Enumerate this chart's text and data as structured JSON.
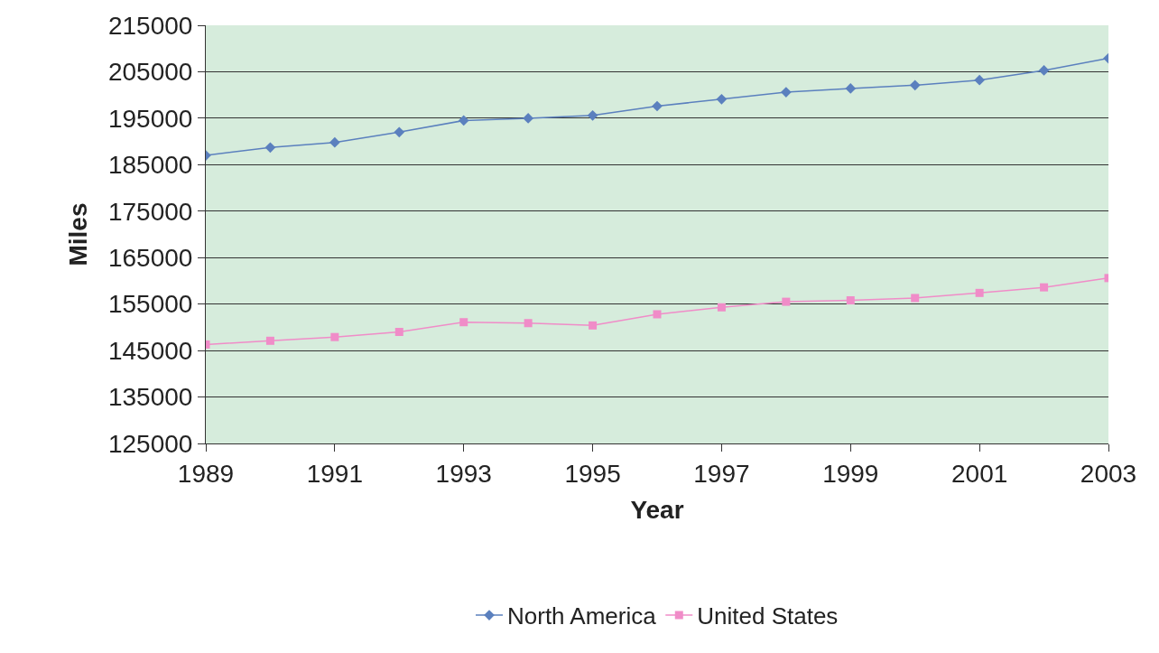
{
  "chart_data": {
    "type": "line",
    "xlabel": "Year",
    "ylabel": "Miles",
    "x": [
      1989,
      1990,
      1991,
      1992,
      1993,
      1994,
      1995,
      1996,
      1997,
      1998,
      1999,
      2000,
      2001,
      2002,
      2003
    ],
    "series": [
      {
        "name": "North America",
        "color": "#5b80be",
        "marker": "diamond",
        "values": [
          187000,
          188700,
          189800,
          192000,
          194500,
          195000,
          195600,
          197600,
          199100,
          200600,
          201400,
          202100,
          203200,
          205300,
          207900
        ]
      },
      {
        "name": "United States",
        "color": "#f08cc8",
        "marker": "square",
        "values": [
          146300,
          147100,
          147900,
          149000,
          151100,
          150900,
          150400,
          152800,
          154300,
          155500,
          155800,
          156300,
          157400,
          158600,
          160600
        ]
      }
    ],
    "xlim": [
      1989,
      2003
    ],
    "xticks": [
      1989,
      1991,
      1993,
      1995,
      1997,
      1999,
      2001,
      2003
    ],
    "ylim": [
      125000,
      215000
    ],
    "yticks": [
      125000,
      135000,
      145000,
      155000,
      165000,
      175000,
      185000,
      195000,
      205000,
      215000
    ],
    "grid": "y",
    "legend": "bottom"
  }
}
